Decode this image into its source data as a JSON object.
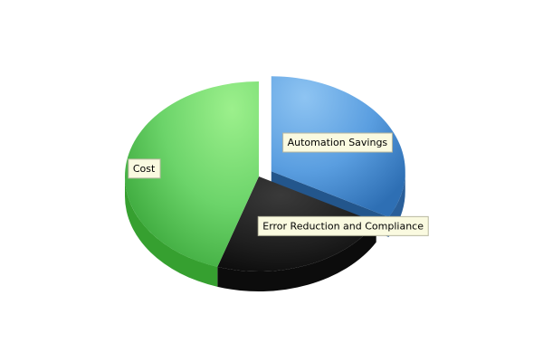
{
  "chart_data": {
    "type": "pie",
    "title": "",
    "slices": [
      {
        "label": "Automation Savings",
        "value": 33,
        "color": "#4a90d6",
        "exploded": true
      },
      {
        "label": "Error Reduction and Compliance",
        "value": 22,
        "color": "#2a2a2a",
        "exploded": false
      },
      {
        "label": "Cost",
        "value": 45,
        "color": "#5cc85c",
        "exploded": false
      }
    ],
    "start_angle_deg": -90,
    "direction": "clockwise",
    "legend": "none",
    "style": "3d"
  }
}
